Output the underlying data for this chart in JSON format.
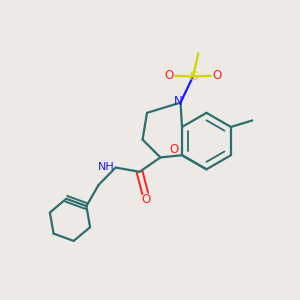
{
  "background_color": "#ede9e4",
  "bond_color": "#2d6e6e",
  "atom_colors": {
    "N": "#1a1aff",
    "O": "#ff2020",
    "S": "#d4d400",
    "C": "#1a1aff",
    "H": "#808080"
  },
  "figsize": [
    3.0,
    3.0
  ],
  "dpi": 100
}
